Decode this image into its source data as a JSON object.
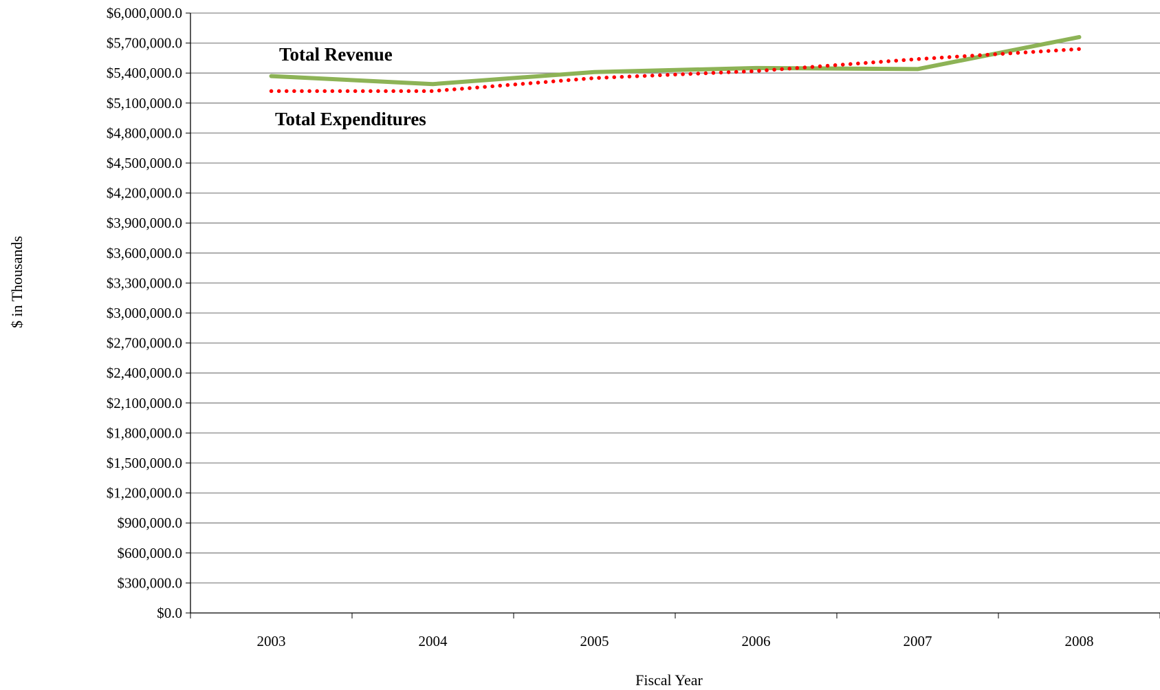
{
  "chart_data": {
    "type": "line",
    "title": "",
    "xlabel": "Fiscal Year",
    "ylabel": "$ in Thousands",
    "categories": [
      "2003",
      "2004",
      "2005",
      "2006",
      "2007",
      "2008"
    ],
    "ylim": [
      0,
      6000000
    ],
    "ytick_step": 300000,
    "grid": true,
    "legend": "inline labels",
    "series": [
      {
        "name": "Total Revenue",
        "values": [
          5370000,
          5290000,
          5410000,
          5450000,
          5440000,
          5760000
        ],
        "color": "#8db356",
        "style": "solid"
      },
      {
        "name": "Total Expenditures",
        "values": [
          5220000,
          5220000,
          5350000,
          5420000,
          5540000,
          5640000
        ],
        "color": "#ff0000",
        "style": "dotted"
      }
    ]
  }
}
